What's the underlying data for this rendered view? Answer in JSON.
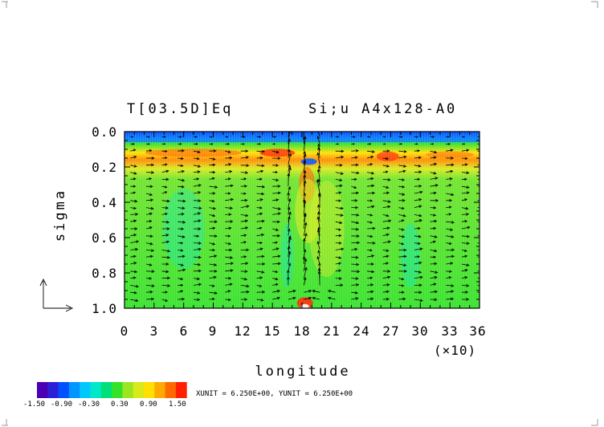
{
  "chart_data": {
    "type": "heatmap",
    "title_left": "T[03.5D]Eq",
    "title_right": "Si;u  A4x128-A0",
    "xlabel": "longitude",
    "x_scale_note": "(×10)",
    "ylabel": "sigma",
    "xlim": [
      0,
      36
    ],
    "ylim": [
      1.0,
      0.0
    ],
    "x_ticks": [
      "0",
      "3",
      "6",
      "9",
      "12",
      "15",
      "18",
      "21",
      "24",
      "27",
      "30",
      "33",
      "36"
    ],
    "y_ticks": [
      "0.0",
      "0.2",
      "0.4",
      "0.6",
      "0.8",
      "1.0"
    ],
    "colorbar": {
      "levels": [
        "-1.50",
        "-0.90",
        "-0.30",
        "0.30",
        "0.90",
        "1.50"
      ],
      "colors": [
        "#4b00b4",
        "#2d1fd6",
        "#0050ff",
        "#0096ff",
        "#00c8ff",
        "#00e8c8",
        "#00e07a",
        "#34e22a",
        "#9ae620",
        "#d8ea1c",
        "#ffe000",
        "#ffaa00",
        "#ff6a00",
        "#ff2000"
      ]
    },
    "footer": "XUNIT = 6.250E+00, YUNIT = 6.250E+00",
    "features": [
      {
        "name": "upper jet band",
        "sigma": 0.12,
        "value": 0.9
      },
      {
        "name": "central maximum",
        "lon": 18.5,
        "sigma": 0.3,
        "value": 1.2
      },
      {
        "name": "surface maximum",
        "lon": 18.3,
        "sigma": 0.97,
        "value": 1.5
      },
      {
        "name": "top minimum",
        "lon": 18.7,
        "sigma": 0.17,
        "value": -1.0
      }
    ]
  }
}
